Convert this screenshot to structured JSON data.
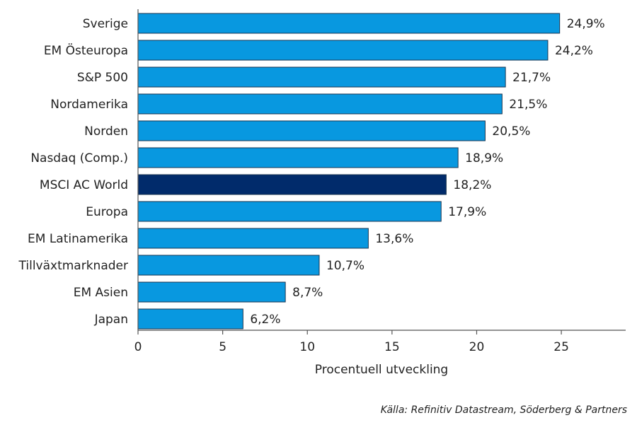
{
  "chart_data": {
    "type": "bar",
    "orientation": "horizontal",
    "categories": [
      "Sverige",
      "EM Östeuropa",
      "S&P 500",
      "Nordamerika",
      "Norden",
      "Nasdaq (Comp.)",
      "MSCI AC World",
      "Europa",
      "EM Latinamerika",
      "Tillväxtmarknader",
      "EM Asien",
      "Japan"
    ],
    "values": [
      24.9,
      24.2,
      21.7,
      21.5,
      20.5,
      18.9,
      18.2,
      17.9,
      13.6,
      10.7,
      8.7,
      6.2
    ],
    "value_labels": [
      "24,9%",
      "24,2%",
      "21,7%",
      "21,5%",
      "20,5%",
      "18,9%",
      "18,2%",
      "17,9%",
      "13,6%",
      "10,7%",
      "8,7%",
      "6,2%"
    ],
    "highlight_index": 6,
    "xlabel": "Procentuell utveckling",
    "xlim": [
      0,
      28.8
    ],
    "xticks": [
      0,
      5,
      10,
      15,
      20,
      25
    ],
    "grid": false,
    "legend": "none"
  },
  "colors": {
    "bar": "#0898E0",
    "highlight": "#012B6B",
    "bar_stroke": "#1a3550",
    "axis": "#555555"
  },
  "source": "Källa: Refinitiv Datastream, Söderberg & Partners"
}
